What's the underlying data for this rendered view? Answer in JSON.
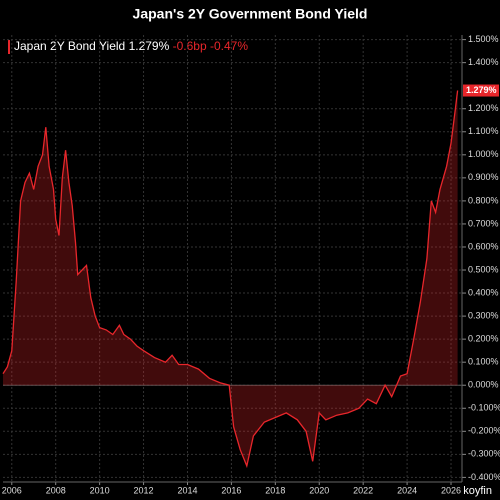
{
  "chart_data": {
    "type": "line",
    "title": "Japan's 2Y Government Bond Yield",
    "legend_value": "1.279%",
    "change_bp": "-0.6bp",
    "change_pct": "-0.47%",
    "watermark": "koyfin",
    "x": [
      2005.6,
      2005.8,
      2006.0,
      2006.2,
      2006.4,
      2006.6,
      2006.8,
      2007.0,
      2007.2,
      2007.4,
      2007.55,
      2007.7,
      2007.9,
      2008.0,
      2008.15,
      2008.3,
      2008.45,
      2008.6,
      2008.75,
      2008.9,
      2009.0,
      2009.2,
      2009.4,
      2009.6,
      2009.8,
      2010.0,
      2010.3,
      2010.6,
      2010.9,
      2011.1,
      2011.4,
      2011.7,
      2012.0,
      2012.5,
      2013.0,
      2013.3,
      2013.6,
      2014.0,
      2014.5,
      2015.0,
      2015.5,
      2015.9,
      2016.1,
      2016.4,
      2016.7,
      2017.0,
      2017.5,
      2018.0,
      2018.5,
      2019.0,
      2019.4,
      2019.7,
      2020.0,
      2020.3,
      2020.8,
      2021.3,
      2021.8,
      2022.2,
      2022.6,
      2023.0,
      2023.3,
      2023.7,
      2024.0,
      2024.3,
      2024.6,
      2024.9,
      2025.1,
      2025.3,
      2025.5,
      2025.8,
      2026.0,
      2026.2,
      2026.3
    ],
    "series": [
      {
        "name": "Japan 2Y Bond Yield",
        "color": "#e8262b",
        "values": [
          0.05,
          0.08,
          0.15,
          0.45,
          0.8,
          0.88,
          0.92,
          0.85,
          0.95,
          1.0,
          1.12,
          0.95,
          0.85,
          0.72,
          0.65,
          0.9,
          1.02,
          0.88,
          0.78,
          0.62,
          0.48,
          0.5,
          0.52,
          0.38,
          0.3,
          0.25,
          0.24,
          0.22,
          0.26,
          0.22,
          0.2,
          0.17,
          0.15,
          0.12,
          0.1,
          0.13,
          0.09,
          0.09,
          0.07,
          0.03,
          0.01,
          0.0,
          -0.18,
          -0.28,
          -0.35,
          -0.22,
          -0.16,
          -0.14,
          -0.12,
          -0.15,
          -0.2,
          -0.33,
          -0.12,
          -0.15,
          -0.13,
          -0.12,
          -0.1,
          -0.06,
          -0.08,
          0.0,
          -0.05,
          0.04,
          0.05,
          0.2,
          0.36,
          0.55,
          0.8,
          0.75,
          0.85,
          0.95,
          1.05,
          1.2,
          1.279
        ]
      }
    ],
    "xlim": [
      2005.6,
      2026.5
    ],
    "xticks": [
      2006,
      2008,
      2010,
      2012,
      2014,
      2016,
      2018,
      2020,
      2022,
      2024,
      2026
    ],
    "ylim": [
      -0.42,
      1.52
    ],
    "yticks": [
      {
        "value": 1.5,
        "label": "1.500%"
      },
      {
        "value": 1.4,
        "label": "1.400%"
      },
      {
        "value": 1.2,
        "label": "1.200%"
      },
      {
        "value": 1.1,
        "label": "1.100%"
      },
      {
        "value": 1.0,
        "label": "1.000%"
      },
      {
        "value": 0.9,
        "label": "0.900%"
      },
      {
        "value": 0.8,
        "label": "0.800%"
      },
      {
        "value": 0.7,
        "label": "0.700%"
      },
      {
        "value": 0.6,
        "label": "0.600%"
      },
      {
        "value": 0.5,
        "label": "0.500%"
      },
      {
        "value": 0.4,
        "label": "0.400%"
      },
      {
        "value": 0.3,
        "label": "0.300%"
      },
      {
        "value": 0.2,
        "label": "0.200%"
      },
      {
        "value": 0.1,
        "label": "0.100%"
      },
      {
        "value": 0,
        "label": "0.000%"
      },
      {
        "value": -0.1,
        "label": "-0.100%"
      },
      {
        "value": -0.2,
        "label": "-0.200%"
      },
      {
        "value": -0.3,
        "label": "-0.300%"
      },
      {
        "value": -0.4,
        "label": "-0.400%"
      }
    ],
    "grid": true
  }
}
